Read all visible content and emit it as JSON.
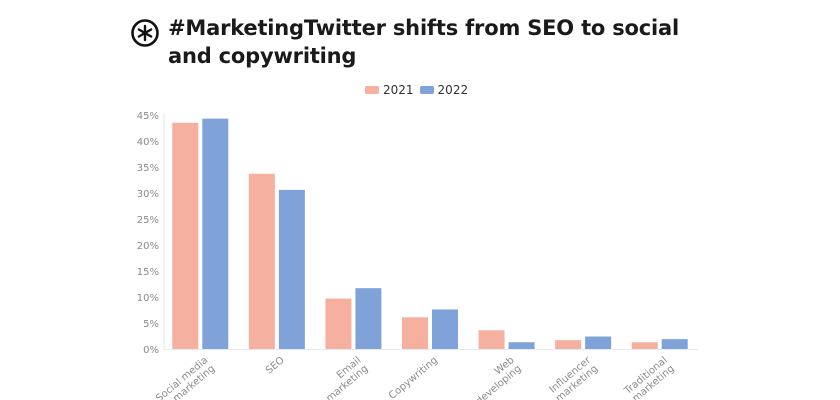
{
  "header": {
    "title": "#MarketingTwitter shifts from SEO to social and copywriting",
    "logo_icon": "asterisk-circle-logo"
  },
  "legend": {
    "items": [
      {
        "label": "2021",
        "color": "#f5b09f"
      },
      {
        "label": "2022",
        "color": "#7fa3d9"
      }
    ],
    "placement": "top-center"
  },
  "chart_data": {
    "type": "bar",
    "title": "#MarketingTwitter shifts from SEO to social and copywriting",
    "xlabel": "",
    "ylabel": "",
    "categories": [
      "Social media marketing",
      "SEO",
      "Email marketing",
      "Copywriting",
      "Web developing",
      "Influencer marketing",
      "Traditional marketing"
    ],
    "series": [
      {
        "name": "2021",
        "color": "#f5b09f",
        "values": [
          43.5,
          33.7,
          9.7,
          6.1,
          3.6,
          1.7,
          1.3
        ]
      },
      {
        "name": "2022",
        "color": "#7fa3d9",
        "values": [
          44.3,
          30.6,
          11.7,
          7.6,
          1.3,
          2.4,
          1.9
        ]
      }
    ],
    "yticks": [
      "0%",
      "5%",
      "10%",
      "15%",
      "20%",
      "25%",
      "30%",
      "35%",
      "40%",
      "45%"
    ],
    "ylim": [
      0,
      45
    ],
    "grid": false,
    "legend": "top-center"
  }
}
